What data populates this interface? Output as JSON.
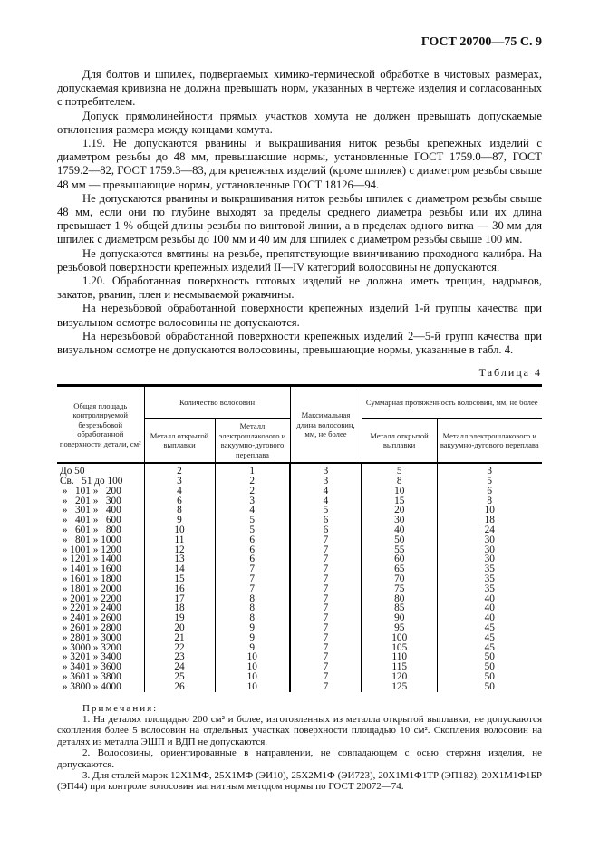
{
  "header": {
    "title": "ГОСТ 20700—75 С. 9"
  },
  "paragraphs": [
    "Для болтов и шпилек, подвергаемых химико-термической обработке в чистовых размерах, допускаемая кривизна не должна превышать норм, указанных в чертеже изделия и согласованных с потребителем.",
    "Допуск прямолинейности прямых участков хомута не должен превышать допускаемые отклонения размера между концами хомута.",
    "1.19. Не допускаются рванины и выкрашивания ниток резьбы крепежных изделий с диаметром резьбы до 48 мм, превышающие нормы, установленные ГОСТ 1759.0—87, ГОСТ 1759.2—82, ГОСТ 1759.3—83, для крепежных изделий (кроме шпилек) с диаметром резьбы свыше 48 мм — превышающие нормы, установленные ГОСТ 18126—94.",
    "Не допускаются рванины и выкрашивания ниток резьбы шпилек с диаметром резьбы свыше 48 мм, если они по глубине выходят за пределы среднего диаметра резьбы или их длина превышает 1 % общей длины резьбы по винтовой линии, а в пределах одного витка — 30 мм для шпилек с диаметром резьбы до 100 мм и 40 мм для шпилек с диаметром резьбы свыше 100 мм.",
    "Не допускаются вмятины на резьбе, препятствующие ввинчиванию проходного калибра. На резьбовой поверхности крепежных изделий II—IV категорий волосовины не допускаются.",
    "1.20. Обработанная поверхность готовых изделий не должна иметь трещин, надрывов, закатов, рванин, плен и несмываемой ржавчины.",
    "На нерезьбовой обработанной поверхности крепежных изделий 1-й группы качества при визуальном осмотре волосовины не допускаются.",
    "На нерезьбовой обработанной поверхности крепежных изделий 2—5-й групп качества при визуальном осмотре не допускаются волосовины, превышающие нормы, указанные в табл. 4."
  ],
  "table": {
    "caption": "Таблица 4",
    "headers": {
      "area": "Общая площадь контролируемой безрезьбовой обработанной поверхности детали, см²",
      "count": "Количество волосовин",
      "maxlen": "Максимальная длина волосовин, мм, не более",
      "total": "Суммарная протяженность волосовин, мм, не более",
      "open": "Металл открытой выплавки",
      "remelt": "Металл электрошлакового и вакуумно-дугового переплава"
    },
    "rows": [
      [
        "До 50",
        "2",
        "1",
        "3",
        "5",
        "3"
      ],
      [
        "Св.   51 до 100",
        "3",
        "2",
        "3",
        "8",
        "5"
      ],
      [
        " »   101 »   200",
        "4",
        "2",
        "4",
        "10",
        "6"
      ],
      [
        " »   201 »   300",
        "6",
        "3",
        "4",
        "15",
        "8"
      ],
      [
        " »   301 »   400",
        "8",
        "4",
        "5",
        "20",
        "10"
      ],
      [
        " »   401 »   600",
        "9",
        "5",
        "6",
        "30",
        "18"
      ],
      [
        " »   601 »   800",
        "10",
        "5",
        "6",
        "40",
        "24"
      ],
      [
        " »   801 » 1000",
        "11",
        "6",
        "7",
        "50",
        "30"
      ],
      [
        " » 1001 » 1200",
        "12",
        "6",
        "7",
        "55",
        "30"
      ],
      [
        " » 1201 » 1400",
        "13",
        "6",
        "7",
        "60",
        "30"
      ],
      [
        " » 1401 » 1600",
        "14",
        "7",
        "7",
        "65",
        "35"
      ],
      [
        " » 1601 » 1800",
        "15",
        "7",
        "7",
        "70",
        "35"
      ],
      [
        " » 1801 » 2000",
        "16",
        "7",
        "7",
        "75",
        "35"
      ],
      [
        " » 2001 » 2200",
        "17",
        "8",
        "7",
        "80",
        "40"
      ],
      [
        " » 2201 » 2400",
        "18",
        "8",
        "7",
        "85",
        "40"
      ],
      [
        " » 2401 » 2600",
        "19",
        "8",
        "7",
        "90",
        "40"
      ],
      [
        " » 2601 » 2800",
        "20",
        "9",
        "7",
        "95",
        "45"
      ],
      [
        " » 2801 » 3000",
        "21",
        "9",
        "7",
        "100",
        "45"
      ],
      [
        " » 3000 » 3200",
        "22",
        "9",
        "7",
        "105",
        "45"
      ],
      [
        " » 3201 » 3400",
        "23",
        "10",
        "7",
        "110",
        "50"
      ],
      [
        " » 3401 » 3600",
        "24",
        "10",
        "7",
        "115",
        "50"
      ],
      [
        " » 3601 » 3800",
        "25",
        "10",
        "7",
        "120",
        "50"
      ],
      [
        " » 3800 » 4000",
        "26",
        "10",
        "7",
        "125",
        "50"
      ]
    ]
  },
  "notes": {
    "title": "Примечания:",
    "items": [
      "1. На деталях площадью 200 см² и более, изготовленных из металла открытой выплавки, не допускаются скопления более 5 волосовин на отдельных участках поверхности площадью 10 см². Скопления волосовин на деталях из металла ЭШП и ВДП не допускаются.",
      "2. Волосовины, ориентированные в направлении, не совпадающем с осью стержня изделия, не допускаются.",
      "3. Для сталей марок 12Х1МФ, 25Х1МФ (ЭИ10), 25Х2М1Ф (ЭИ723), 20Х1М1Ф1ТР (ЭП182), 20Х1М1Ф1БР (ЭП44) при контроле волосовин магнитным методом нормы по ГОСТ 20072—74."
    ]
  }
}
